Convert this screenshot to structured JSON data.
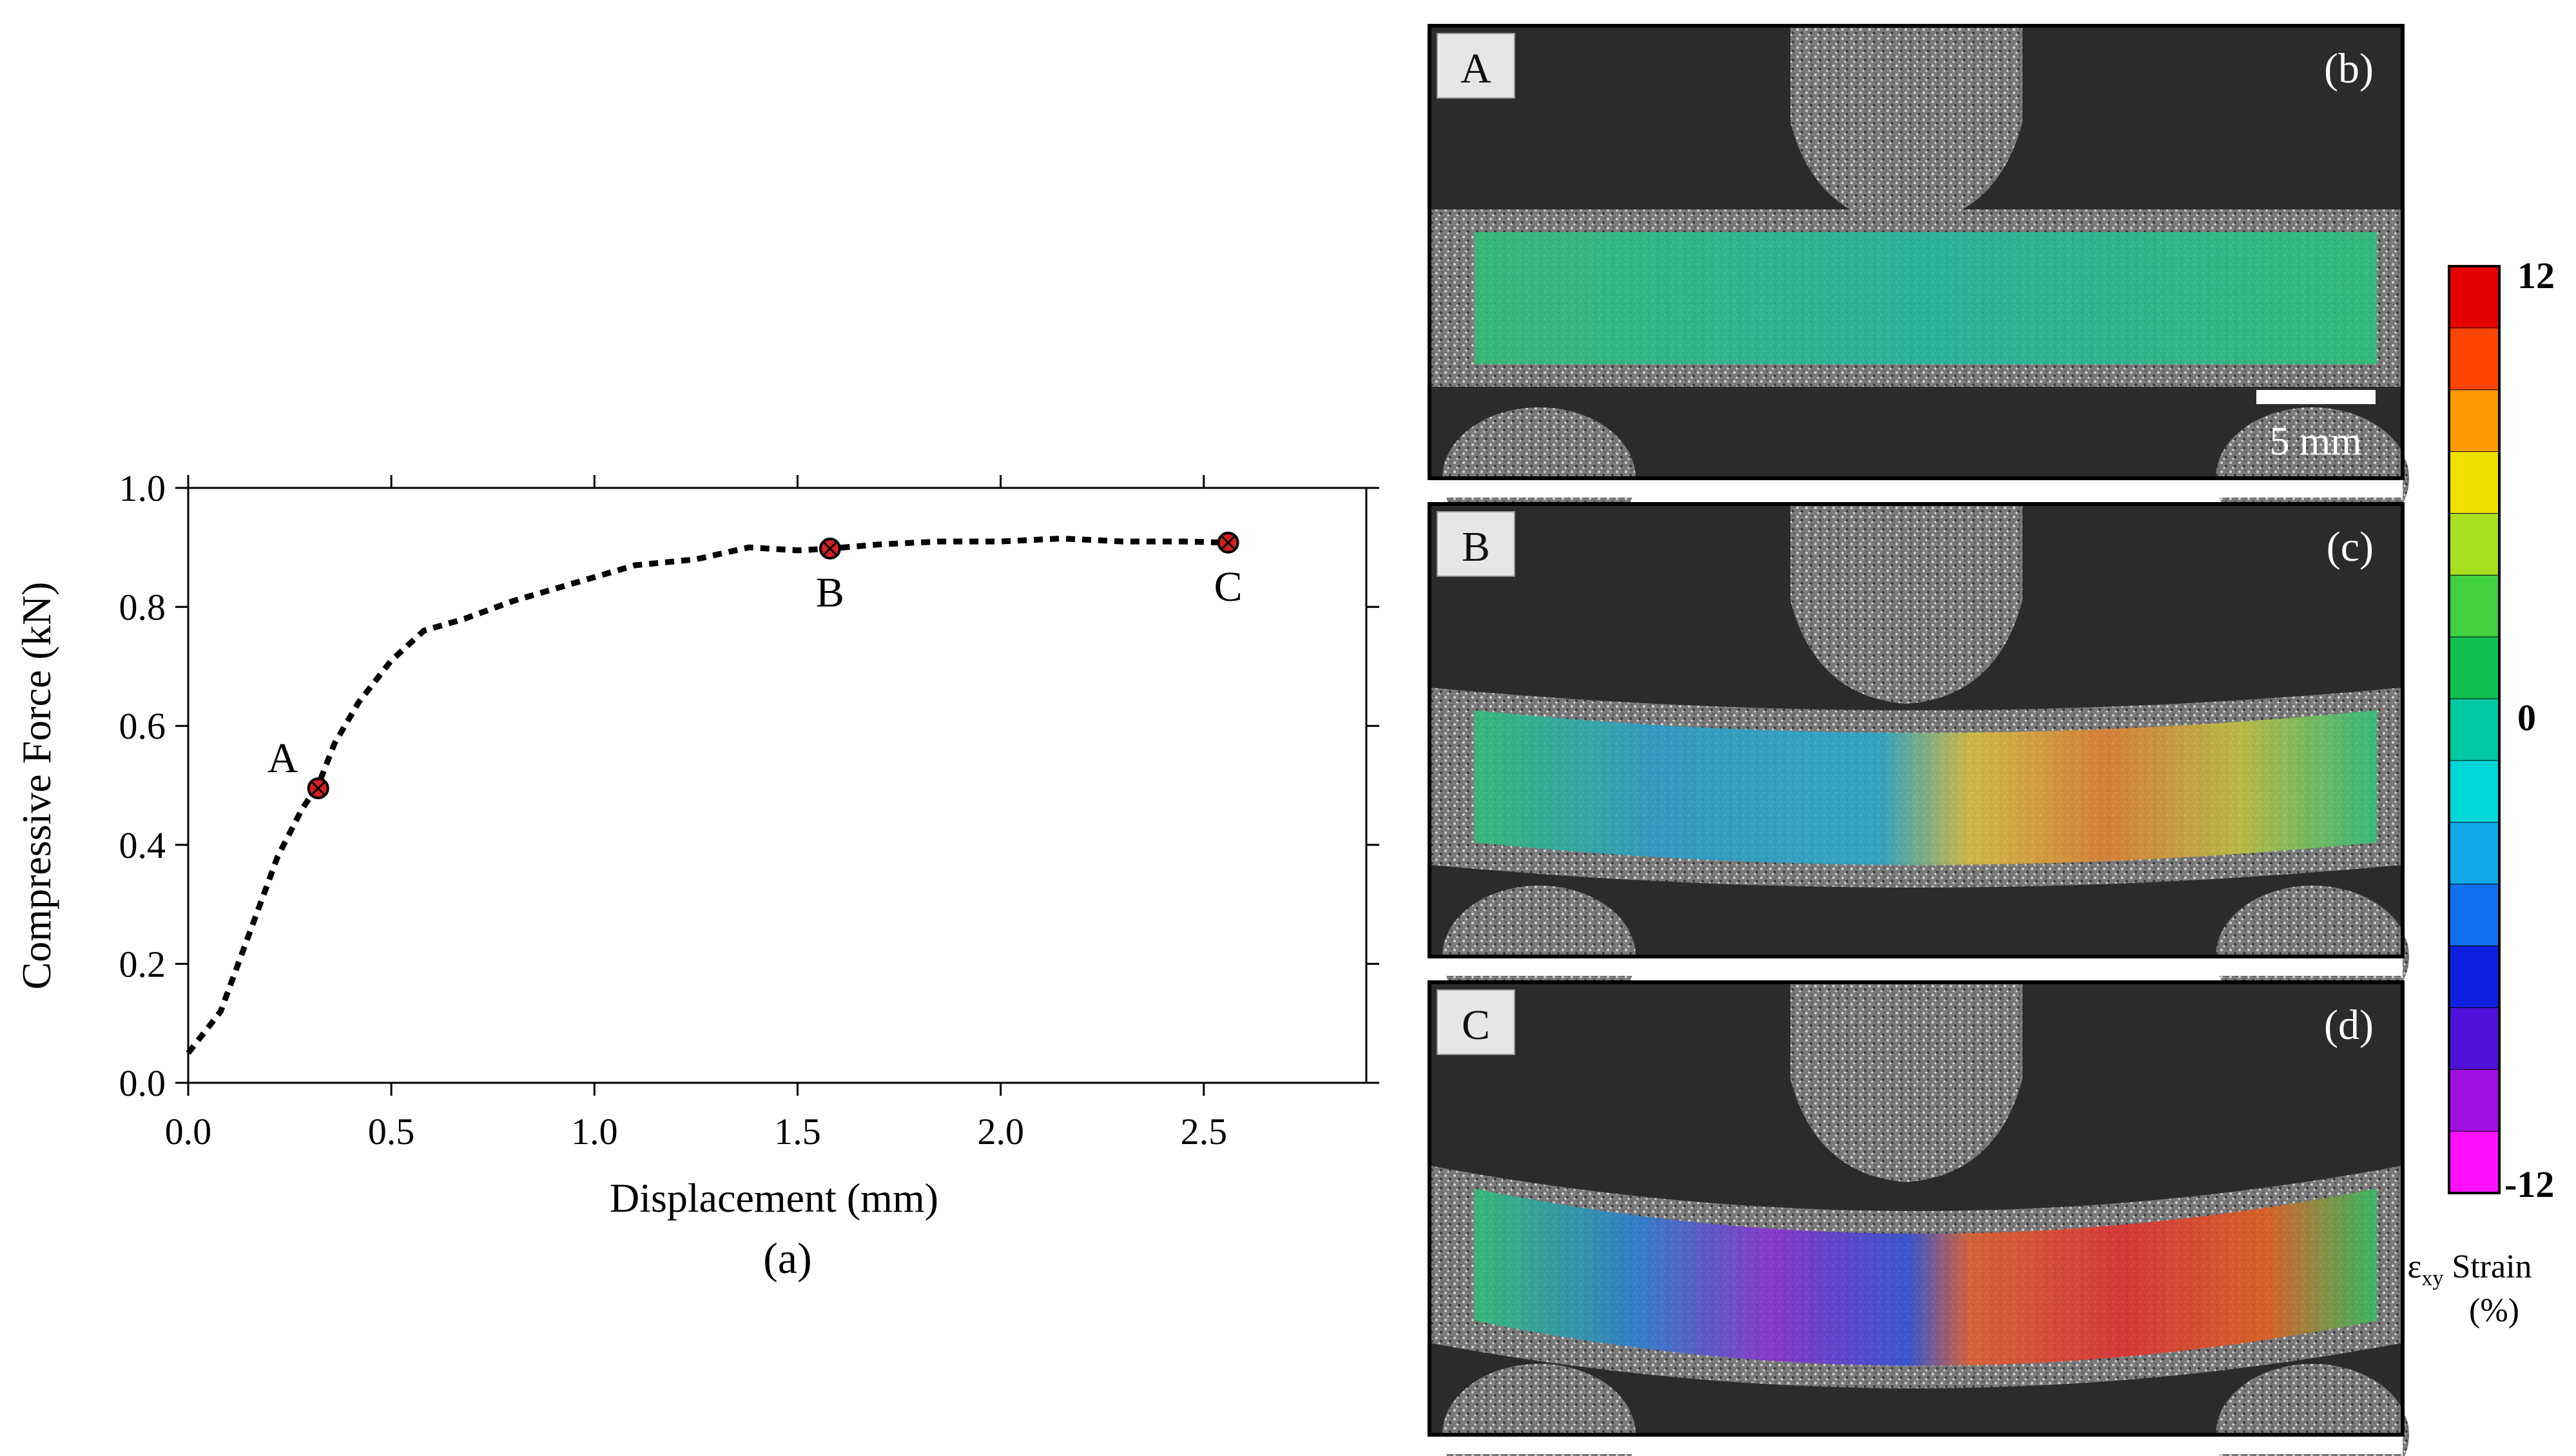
{
  "chart_data": {
    "type": "line",
    "panel_label": "(a)",
    "xlabel": "Displacement (mm)",
    "ylabel": "Compressive Force (kN)",
    "xlim": [
      0.0,
      2.9
    ],
    "ylim": [
      0.0,
      1.0
    ],
    "x_ticks": [
      "0.0",
      "0.5",
      "1.0",
      "1.5",
      "2.0",
      "2.5"
    ],
    "y_ticks": [
      "0.0",
      "0.2",
      "0.4",
      "0.6",
      "0.8",
      "1.0"
    ],
    "grid": false,
    "line_style": "dotted",
    "series": [
      {
        "x": [
          0.0,
          0.08,
          0.15,
          0.22,
          0.28,
          0.32,
          0.36,
          0.42,
          0.5,
          0.58,
          0.68,
          0.8,
          0.95,
          1.1,
          1.25,
          1.38,
          1.5,
          1.58,
          1.7,
          1.85,
          2.0,
          2.15,
          2.3,
          2.45,
          2.56
        ],
        "y": [
          0.05,
          0.12,
          0.25,
          0.38,
          0.46,
          0.5,
          0.57,
          0.64,
          0.71,
          0.76,
          0.78,
          0.81,
          0.84,
          0.87,
          0.88,
          0.9,
          0.895,
          0.898,
          0.905,
          0.91,
          0.91,
          0.915,
          0.91,
          0.91,
          0.908
        ]
      }
    ],
    "markers": [
      {
        "label": "A",
        "x": 0.32,
        "y": 0.495
      },
      {
        "label": "B",
        "x": 1.58,
        "y": 0.898
      },
      {
        "label": "C",
        "x": 2.56,
        "y": 0.908
      }
    ]
  },
  "images": [
    {
      "stage": "A",
      "panel_label": "(b)",
      "scale_bar": "5 mm"
    },
    {
      "stage": "B",
      "panel_label": "(c)"
    },
    {
      "stage": "C",
      "panel_label": "(d)"
    }
  ],
  "colorbar": {
    "max_label": "12",
    "mid_label": "0",
    "min_label": "-12",
    "title_symbol": "ε",
    "title_sub": "xy",
    "title_word": " Strain",
    "title_unit": "(%)",
    "colors": [
      "#e60000",
      "#ff4400",
      "#ff9900",
      "#f0e000",
      "#a8e020",
      "#40d040",
      "#10c050",
      "#00c8a0",
      "#00d8d8",
      "#10a8e8",
      "#1070f0",
      "#1020e0",
      "#5010d8",
      "#a010e0",
      "#ff10ff"
    ]
  }
}
